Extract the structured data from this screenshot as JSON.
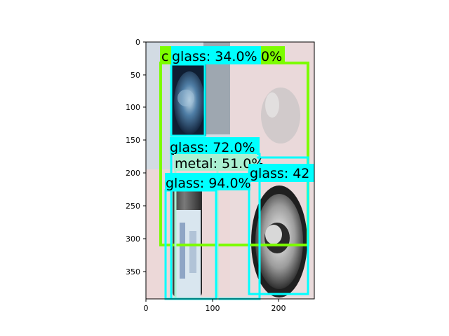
{
  "axes": {
    "y_ticks": [
      "0",
      "50",
      "100",
      "150",
      "200",
      "250",
      "300",
      "350"
    ],
    "x_ticks": [
      "0",
      "100",
      "200"
    ]
  },
  "colors": {
    "glass": "#00ffff",
    "metal": "#aaf0d1",
    "cardboard": "#7cfc00"
  },
  "detections": [
    {
      "id": "det-lime-big",
      "label": "c",
      "extra": "0%",
      "class": "cardboard"
    },
    {
      "id": "det-glass-34",
      "label": "glass: 34.0%",
      "class": "glass"
    },
    {
      "id": "det-glass-72",
      "label": "glass: 72.0%",
      "class": "glass"
    },
    {
      "id": "det-metal-51",
      "label": "metal: 51.0%",
      "class": "metal"
    },
    {
      "id": "det-glass-42",
      "label": "glass: 42",
      "class": "glass"
    },
    {
      "id": "det-glass-94",
      "label": "glass: 94.0%",
      "class": "glass"
    }
  ],
  "image_content": {
    "quadrants": [
      "blue glass bottle bottom (top-left)",
      "grey glass jar (top-right)",
      "plastic-labeled glass bottle (bottom-left)",
      "aluminium can top (bottom-right)"
    ]
  }
}
